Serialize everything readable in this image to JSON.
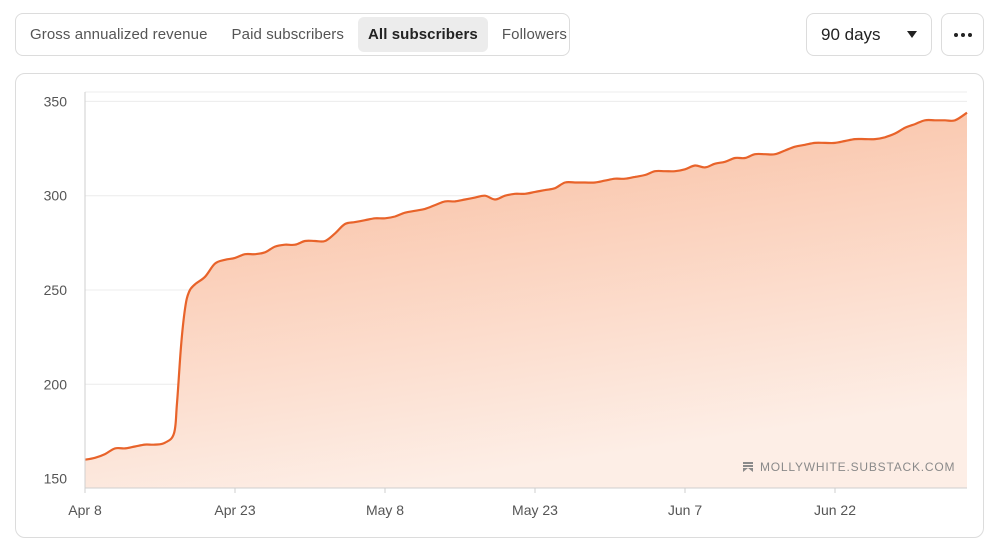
{
  "tabs": [
    {
      "label": "Gross annualized revenue",
      "active": false
    },
    {
      "label": "Paid subscribers",
      "active": false
    },
    {
      "label": "All subscribers",
      "active": true
    },
    {
      "label": "Followers",
      "active": false
    }
  ],
  "range_select": {
    "value": "90 days",
    "icon": "caret-down-icon"
  },
  "more_button": {
    "icon": "more-horizontal-icon"
  },
  "watermark": {
    "text": "MOLLYWHITE.SUBSTACK.COM",
    "icon": "substack-logo-icon"
  },
  "colors": {
    "line": "#e8632a",
    "fill_top": "#f9b999",
    "fill_bottom": "#fdeee6",
    "grid": "#ececec",
    "axis": "#cfcfcf"
  },
  "chart_data": {
    "type": "area",
    "ylim": [
      145,
      355
    ],
    "yticks": [
      150,
      200,
      250,
      300,
      350
    ],
    "xticks": [
      {
        "label": "Apr 8",
        "day": 0
      },
      {
        "label": "Apr 23",
        "day": 15
      },
      {
        "label": "May 8",
        "day": 30
      },
      {
        "label": "May 23",
        "day": 45
      },
      {
        "label": "Jun 7",
        "day": 60
      },
      {
        "label": "Jun 22",
        "day": 75
      }
    ],
    "series": [
      {
        "points": [
          [
            0,
            160
          ],
          [
            1,
            161
          ],
          [
            2,
            163
          ],
          [
            3,
            166
          ],
          [
            4,
            166
          ],
          [
            5,
            167
          ],
          [
            6,
            168
          ],
          [
            7,
            168
          ],
          [
            8,
            169
          ],
          [
            8.9,
            174
          ],
          [
            9.2,
            190
          ],
          [
            9.6,
            220
          ],
          [
            10,
            240
          ],
          [
            10.4,
            249
          ],
          [
            11,
            253
          ],
          [
            12,
            257
          ],
          [
            13,
            264
          ],
          [
            14,
            266
          ],
          [
            15,
            267
          ],
          [
            16,
            269
          ],
          [
            17,
            269
          ],
          [
            18,
            270
          ],
          [
            19,
            273
          ],
          [
            20,
            274
          ],
          [
            21,
            274
          ],
          [
            22,
            276
          ],
          [
            23,
            276
          ],
          [
            24,
            276
          ],
          [
            25,
            280
          ],
          [
            26,
            285
          ],
          [
            27,
            286
          ],
          [
            28,
            287
          ],
          [
            29,
            288
          ],
          [
            30,
            288
          ],
          [
            31,
            289
          ],
          [
            32,
            291
          ],
          [
            33,
            292
          ],
          [
            34,
            293
          ],
          [
            35,
            295
          ],
          [
            36,
            297
          ],
          [
            37,
            297
          ],
          [
            38,
            298
          ],
          [
            39,
            299
          ],
          [
            40,
            300
          ],
          [
            41,
            298
          ],
          [
            42,
            300
          ],
          [
            43,
            301
          ],
          [
            44,
            301
          ],
          [
            45,
            302
          ],
          [
            46,
            303
          ],
          [
            47,
            304
          ],
          [
            48,
            307
          ],
          [
            49,
            307
          ],
          [
            50,
            307
          ],
          [
            51,
            307
          ],
          [
            52,
            308
          ],
          [
            53,
            309
          ],
          [
            54,
            309
          ],
          [
            55,
            310
          ],
          [
            56,
            311
          ],
          [
            57,
            313
          ],
          [
            58,
            313
          ],
          [
            59,
            313
          ],
          [
            60,
            314
          ],
          [
            61,
            316
          ],
          [
            62,
            315
          ],
          [
            63,
            317
          ],
          [
            64,
            318
          ],
          [
            65,
            320
          ],
          [
            66,
            320
          ],
          [
            67,
            322
          ],
          [
            68,
            322
          ],
          [
            69,
            322
          ],
          [
            70,
            324
          ],
          [
            71,
            326
          ],
          [
            72,
            327
          ],
          [
            73,
            328
          ],
          [
            74,
            328
          ],
          [
            75,
            328
          ],
          [
            76,
            329
          ],
          [
            77,
            330
          ],
          [
            78,
            330
          ],
          [
            79,
            330
          ],
          [
            80,
            331
          ],
          [
            81,
            333
          ],
          [
            82,
            336
          ],
          [
            83,
            338
          ],
          [
            84,
            340
          ],
          [
            85,
            340
          ],
          [
            86,
            340
          ],
          [
            87,
            340
          ],
          [
            88.2,
            344
          ]
        ]
      }
    ],
    "watermark": "MOLLYWHITE.SUBSTACK.COM"
  }
}
